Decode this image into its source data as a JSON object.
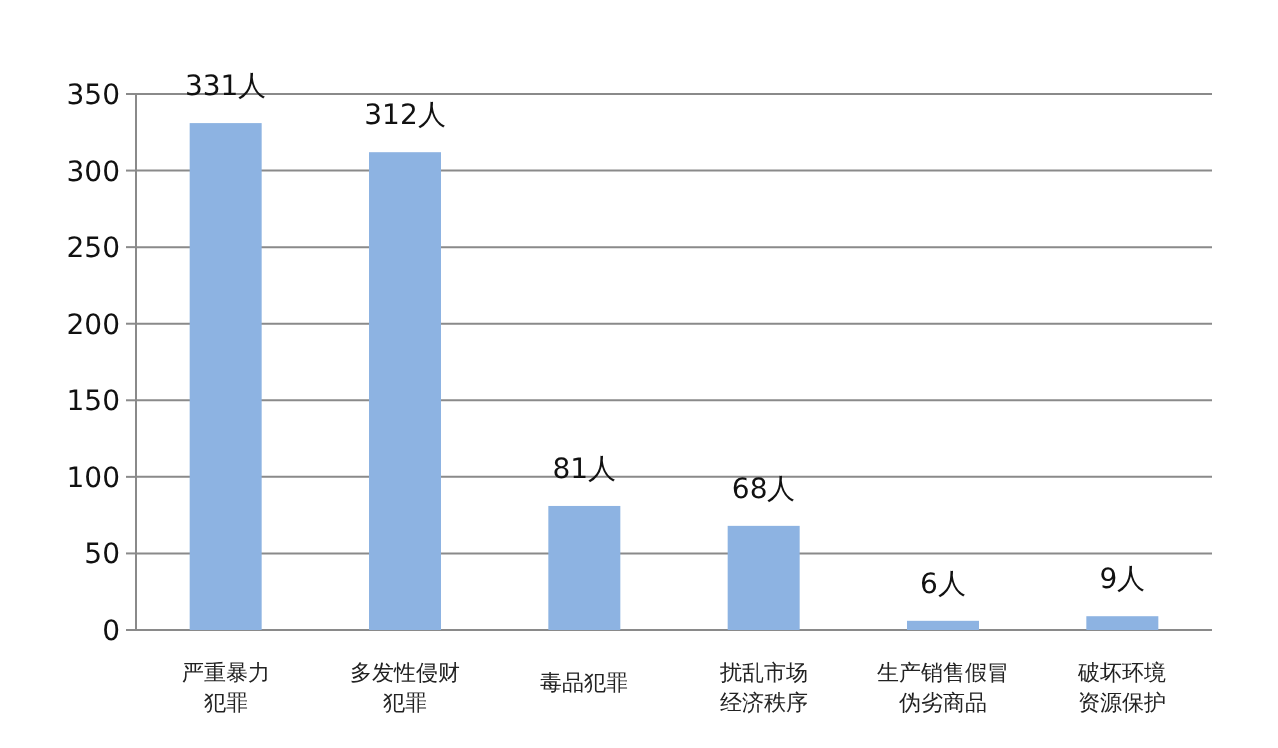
{
  "chart_data": {
    "type": "bar",
    "categories": [
      "严重暴力犯罪",
      "多发性侵财犯罪",
      "毒品犯罪",
      "扰乱市场经济秩序",
      "生产销售假冒伪劣商品",
      "破坏环境资源保护"
    ],
    "values": [
      331,
      312,
      81,
      68,
      6,
      9
    ],
    "value_labels": [
      "331人",
      "312人",
      "81人",
      "68人",
      "6人",
      "9人"
    ],
    "color": "#8db3e2",
    "ylim": [
      0,
      350
    ],
    "yticks": [
      0,
      50,
      100,
      150,
      200,
      250,
      300,
      350
    ],
    "grid": "y"
  }
}
